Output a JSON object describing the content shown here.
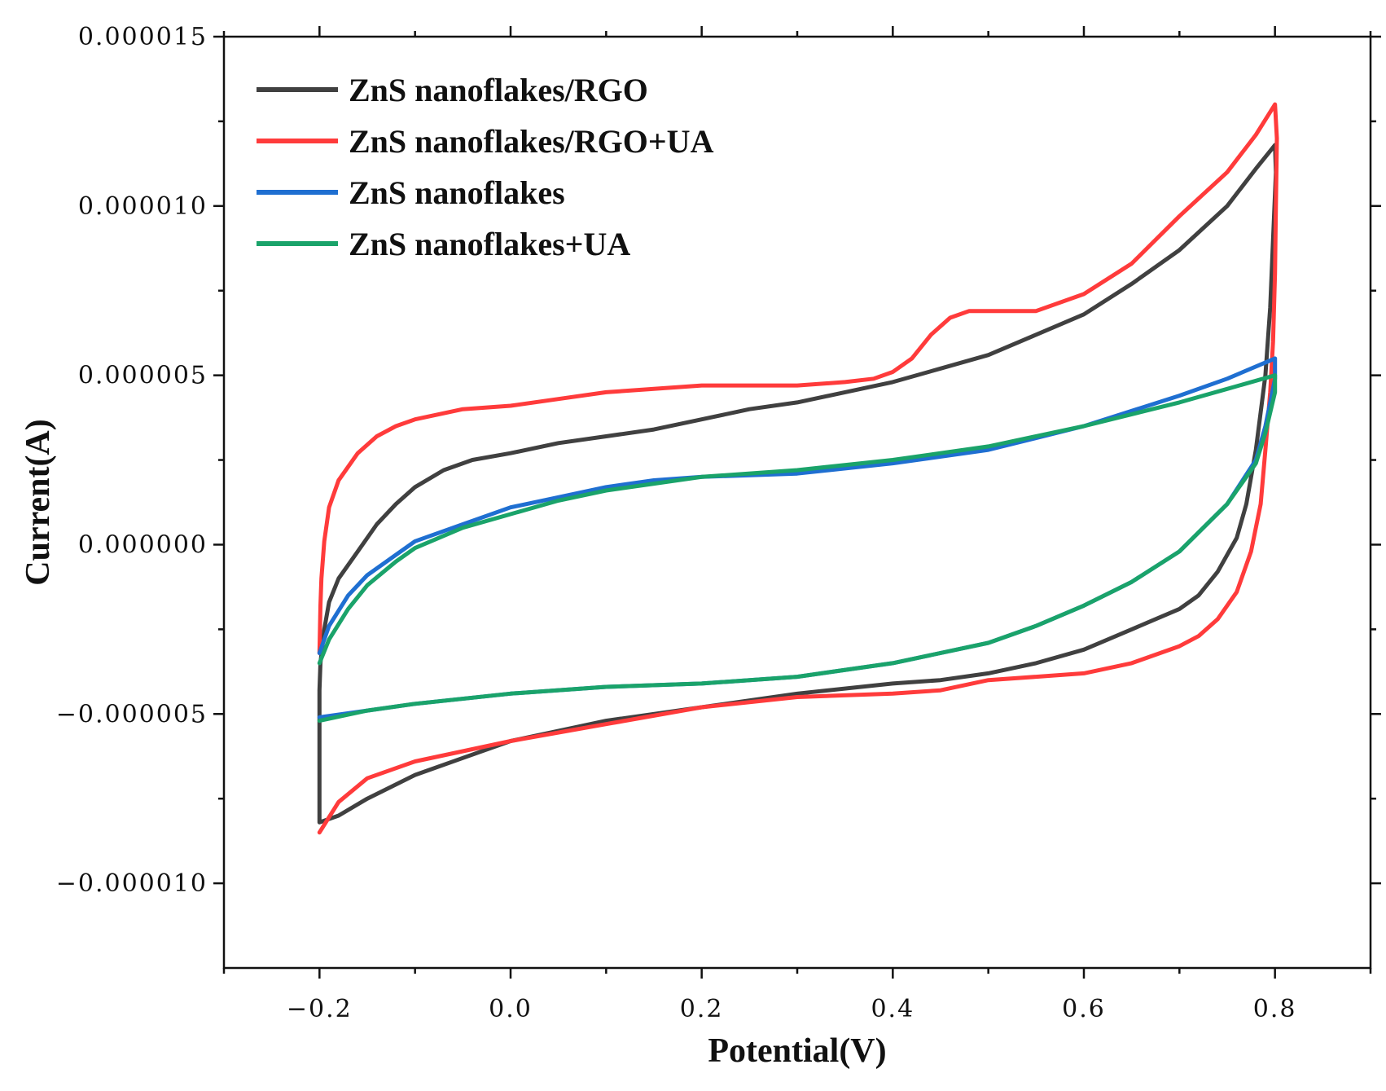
{
  "chart_data": {
    "type": "line",
    "title": "",
    "xlabel": "Potential(V)",
    "ylabel": "Current(A)",
    "xlim": [
      -0.3,
      0.9
    ],
    "ylim": [
      -1.25e-05,
      1.5e-05
    ],
    "grid": false,
    "legend_position": "top-left",
    "x_ticks": [
      -0.2,
      0.0,
      0.2,
      0.4,
      0.6,
      0.8
    ],
    "x_tick_labels": [
      "−0.2",
      "0.0",
      "0.2",
      "0.4",
      "0.6",
      "0.8"
    ],
    "y_ticks": [
      -1e-05,
      -5e-06,
      0,
      5e-06,
      1e-05,
      1.5e-05
    ],
    "y_tick_labels": [
      "−0.000010",
      "−0.000005",
      "0.000000",
      "0.000005",
      "0.000010",
      "0.000015"
    ],
    "x_minor_ticks": [
      -0.3,
      -0.1,
      0.1,
      0.3,
      0.5,
      0.7,
      0.9
    ],
    "y_minor_ticks": [
      -7.5e-06,
      -2.5e-06,
      2.5e-06,
      7.5e-06,
      1.25e-05
    ],
    "series": [
      {
        "name": "ZnS nanoflakes/RGO",
        "color": "#404040",
        "points": [
          [
            -0.2,
            -4.3e-06
          ],
          [
            -0.199,
            -3.5e-06
          ],
          [
            -0.195,
            -2.5e-06
          ],
          [
            -0.19,
            -1.7e-06
          ],
          [
            -0.18,
            -1e-06
          ],
          [
            -0.16,
            -2e-07
          ],
          [
            -0.14,
            6e-07
          ],
          [
            -0.12,
            1.2e-06
          ],
          [
            -0.1,
            1.7e-06
          ],
          [
            -0.07,
            2.2e-06
          ],
          [
            -0.04,
            2.5e-06
          ],
          [
            0.0,
            2.7e-06
          ],
          [
            0.05,
            3e-06
          ],
          [
            0.1,
            3.2e-06
          ],
          [
            0.15,
            3.4e-06
          ],
          [
            0.2,
            3.7e-06
          ],
          [
            0.25,
            4e-06
          ],
          [
            0.3,
            4.2e-06
          ],
          [
            0.35,
            4.5e-06
          ],
          [
            0.4,
            4.8e-06
          ],
          [
            0.45,
            5.2e-06
          ],
          [
            0.5,
            5.6e-06
          ],
          [
            0.55,
            6.2e-06
          ],
          [
            0.6,
            6.8e-06
          ],
          [
            0.65,
            7.7e-06
          ],
          [
            0.7,
            8.7e-06
          ],
          [
            0.75,
            1e-05
          ],
          [
            0.78,
            1.11e-05
          ],
          [
            0.8,
            1.18e-05
          ],
          [
            0.801,
            1.1e-05
          ],
          [
            0.798,
            9e-06
          ],
          [
            0.795,
            7e-06
          ],
          [
            0.79,
            5e-06
          ],
          [
            0.78,
            2.8e-06
          ],
          [
            0.77,
            1.2e-06
          ],
          [
            0.76,
            2e-07
          ],
          [
            0.74,
            -8e-07
          ],
          [
            0.72,
            -1.5e-06
          ],
          [
            0.7,
            -1.9e-06
          ],
          [
            0.65,
            -2.5e-06
          ],
          [
            0.6,
            -3.1e-06
          ],
          [
            0.55,
            -3.5e-06
          ],
          [
            0.5,
            -3.8e-06
          ],
          [
            0.45,
            -4e-06
          ],
          [
            0.4,
            -4.1e-06
          ],
          [
            0.3,
            -4.4e-06
          ],
          [
            0.2,
            -4.8e-06
          ],
          [
            0.1,
            -5.2e-06
          ],
          [
            0.0,
            -5.8e-06
          ],
          [
            -0.05,
            -6.3e-06
          ],
          [
            -0.1,
            -6.8e-06
          ],
          [
            -0.15,
            -7.5e-06
          ],
          [
            -0.18,
            -8e-06
          ],
          [
            -0.2,
            -8.2e-06
          ],
          [
            -0.2,
            -7e-06
          ],
          [
            -0.2,
            -5e-06
          ],
          [
            -0.2,
            -4.3e-06
          ]
        ]
      },
      {
        "name": "ZnS nanoflakes/RGO+UA",
        "color": "#ff3b3b",
        "points": [
          [
            -0.2,
            -3.2e-06
          ],
          [
            -0.199,
            -1.8e-06
          ],
          [
            -0.198,
            -1e-06
          ],
          [
            -0.195,
            1e-07
          ],
          [
            -0.19,
            1.1e-06
          ],
          [
            -0.18,
            1.9e-06
          ],
          [
            -0.16,
            2.7e-06
          ],
          [
            -0.14,
            3.2e-06
          ],
          [
            -0.12,
            3.5e-06
          ],
          [
            -0.1,
            3.7e-06
          ],
          [
            -0.05,
            4e-06
          ],
          [
            0.0,
            4.1e-06
          ],
          [
            0.05,
            4.3e-06
          ],
          [
            0.1,
            4.5e-06
          ],
          [
            0.15,
            4.6e-06
          ],
          [
            0.2,
            4.7e-06
          ],
          [
            0.25,
            4.7e-06
          ],
          [
            0.3,
            4.7e-06
          ],
          [
            0.35,
            4.8e-06
          ],
          [
            0.38,
            4.9e-06
          ],
          [
            0.4,
            5.1e-06
          ],
          [
            0.42,
            5.5e-06
          ],
          [
            0.44,
            6.2e-06
          ],
          [
            0.46,
            6.7e-06
          ],
          [
            0.48,
            6.9e-06
          ],
          [
            0.5,
            6.9e-06
          ],
          [
            0.55,
            6.9e-06
          ],
          [
            0.6,
            7.4e-06
          ],
          [
            0.65,
            8.3e-06
          ],
          [
            0.7,
            9.7e-06
          ],
          [
            0.75,
            1.1e-05
          ],
          [
            0.78,
            1.21e-05
          ],
          [
            0.8,
            1.3e-05
          ],
          [
            0.802,
            1.2e-05
          ],
          [
            0.801,
            1e-05
          ],
          [
            0.8,
            8e-06
          ],
          [
            0.798,
            6e-06
          ],
          [
            0.795,
            4.5e-06
          ],
          [
            0.79,
            2.8e-06
          ],
          [
            0.785,
            1.2e-06
          ],
          [
            0.775,
            -2e-07
          ],
          [
            0.76,
            -1.4e-06
          ],
          [
            0.74,
            -2.2e-06
          ],
          [
            0.72,
            -2.7e-06
          ],
          [
            0.7,
            -3e-06
          ],
          [
            0.65,
            -3.5e-06
          ],
          [
            0.6,
            -3.8e-06
          ],
          [
            0.55,
            -3.9e-06
          ],
          [
            0.5,
            -4e-06
          ],
          [
            0.45,
            -4.3e-06
          ],
          [
            0.4,
            -4.4e-06
          ],
          [
            0.3,
            -4.5e-06
          ],
          [
            0.2,
            -4.8e-06
          ],
          [
            0.1,
            -5.3e-06
          ],
          [
            0.0,
            -5.8e-06
          ],
          [
            -0.05,
            -6.1e-06
          ],
          [
            -0.1,
            -6.4e-06
          ],
          [
            -0.15,
            -6.9e-06
          ],
          [
            -0.18,
            -7.6e-06
          ],
          [
            -0.2,
            -8.5e-06
          ]
        ]
      },
      {
        "name": "ZnS nanoflakes",
        "color": "#1f6fd1",
        "points": [
          [
            -0.2,
            -3.2e-06
          ],
          [
            -0.19,
            -2.4e-06
          ],
          [
            -0.17,
            -1.5e-06
          ],
          [
            -0.15,
            -9e-07
          ],
          [
            -0.12,
            -3e-07
          ],
          [
            -0.1,
            1e-07
          ],
          [
            -0.05,
            6e-07
          ],
          [
            0.0,
            1.1e-06
          ],
          [
            0.05,
            1.4e-06
          ],
          [
            0.1,
            1.7e-06
          ],
          [
            0.15,
            1.9e-06
          ],
          [
            0.2,
            2e-06
          ],
          [
            0.3,
            2.1e-06
          ],
          [
            0.4,
            2.4e-06
          ],
          [
            0.5,
            2.8e-06
          ],
          [
            0.6,
            3.5e-06
          ],
          [
            0.7,
            4.4e-06
          ],
          [
            0.75,
            4.9e-06
          ],
          [
            0.8,
            5.5e-06
          ],
          [
            0.8,
            4.9e-06
          ],
          [
            0.79,
            3.5e-06
          ],
          [
            0.78,
            2.5e-06
          ],
          [
            0.75,
            1.2e-06
          ],
          [
            0.7,
            -2e-07
          ],
          [
            0.65,
            -1.1e-06
          ],
          [
            0.6,
            -1.8e-06
          ],
          [
            0.55,
            -2.4e-06
          ],
          [
            0.5,
            -2.9e-06
          ],
          [
            0.4,
            -3.5e-06
          ],
          [
            0.3,
            -3.9e-06
          ],
          [
            0.2,
            -4.1e-06
          ],
          [
            0.1,
            -4.2e-06
          ],
          [
            0.0,
            -4.4e-06
          ],
          [
            -0.1,
            -4.7e-06
          ],
          [
            -0.15,
            -4.9e-06
          ],
          [
            -0.2,
            -5.1e-06
          ]
        ]
      },
      {
        "name": "ZnS nanoflakes+UA",
        "color": "#1aa36a",
        "points": [
          [
            -0.2,
            -3.5e-06
          ],
          [
            -0.19,
            -2.8e-06
          ],
          [
            -0.17,
            -1.9e-06
          ],
          [
            -0.15,
            -1.2e-06
          ],
          [
            -0.12,
            -5e-07
          ],
          [
            -0.1,
            -1e-07
          ],
          [
            -0.05,
            5e-07
          ],
          [
            0.0,
            9e-07
          ],
          [
            0.05,
            1.3e-06
          ],
          [
            0.1,
            1.6e-06
          ],
          [
            0.15,
            1.8e-06
          ],
          [
            0.2,
            2e-06
          ],
          [
            0.3,
            2.2e-06
          ],
          [
            0.4,
            2.5e-06
          ],
          [
            0.5,
            2.9e-06
          ],
          [
            0.6,
            3.5e-06
          ],
          [
            0.7,
            4.2e-06
          ],
          [
            0.75,
            4.6e-06
          ],
          [
            0.8,
            5e-06
          ],
          [
            0.8,
            4.5e-06
          ],
          [
            0.79,
            3.3e-06
          ],
          [
            0.78,
            2.4e-06
          ],
          [
            0.75,
            1.2e-06
          ],
          [
            0.7,
            -2e-07
          ],
          [
            0.65,
            -1.1e-06
          ],
          [
            0.6,
            -1.8e-06
          ],
          [
            0.55,
            -2.4e-06
          ],
          [
            0.5,
            -2.9e-06
          ],
          [
            0.4,
            -3.5e-06
          ],
          [
            0.3,
            -3.9e-06
          ],
          [
            0.2,
            -4.1e-06
          ],
          [
            0.1,
            -4.2e-06
          ],
          [
            0.0,
            -4.4e-06
          ],
          [
            -0.1,
            -4.7e-06
          ],
          [
            -0.15,
            -4.9e-06
          ],
          [
            -0.2,
            -5.2e-06
          ]
        ]
      }
    ]
  }
}
